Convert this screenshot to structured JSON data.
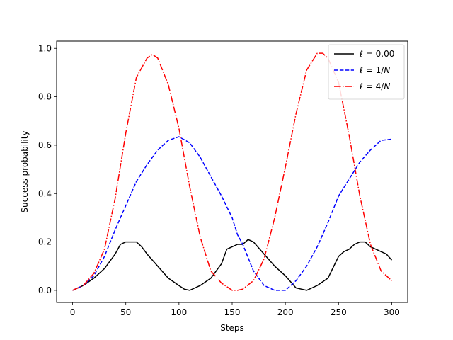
{
  "chart_data": {
    "type": "line",
    "title": "",
    "xlabel": "Steps",
    "ylabel": "Success probability",
    "xlim": [
      -15,
      315
    ],
    "ylim": [
      -0.05,
      1.03
    ],
    "xticks": [
      0,
      50,
      100,
      150,
      200,
      250,
      300
    ],
    "yticks": [
      0.0,
      0.2,
      0.4,
      0.6,
      0.8,
      1.0
    ],
    "xtick_labels": [
      "0",
      "50",
      "100",
      "150",
      "200",
      "250",
      "300"
    ],
    "ytick_labels": [
      "0.0",
      "0.2",
      "0.4",
      "0.6",
      "0.8",
      "1.0"
    ],
    "grid": false,
    "legend_position": "top-right",
    "series": [
      {
        "name": "ℓ = 0.00",
        "label_parts": [
          "ℓ = 0.00"
        ],
        "color": "#000000",
        "dash": "solid",
        "x": [
          0,
          10,
          20,
          30,
          40,
          45,
          50,
          55,
          60,
          65,
          70,
          80,
          90,
          100,
          105,
          110,
          115,
          120,
          130,
          140,
          145,
          150,
          155,
          160,
          165,
          170,
          180,
          190,
          200,
          210,
          215,
          220,
          225,
          230,
          240,
          250,
          255,
          260,
          265,
          270,
          275,
          280,
          285,
          290,
          295,
          300
        ],
        "y": [
          0.0,
          0.02,
          0.05,
          0.09,
          0.15,
          0.19,
          0.2,
          0.2,
          0.2,
          0.18,
          0.15,
          0.1,
          0.05,
          0.02,
          0.005,
          0.0,
          0.01,
          0.02,
          0.05,
          0.11,
          0.17,
          0.18,
          0.19,
          0.19,
          0.21,
          0.2,
          0.15,
          0.1,
          0.06,
          0.01,
          0.005,
          0.0,
          0.01,
          0.02,
          0.05,
          0.14,
          0.16,
          0.17,
          0.19,
          0.2,
          0.2,
          0.18,
          0.17,
          0.16,
          0.15,
          0.125
        ]
      },
      {
        "name": "ℓ = 1/N",
        "label_parts": [
          "ℓ = 1/",
          "N"
        ],
        "color": "#0000ff",
        "dash": "dashed",
        "x": [
          0,
          10,
          20,
          30,
          40,
          50,
          60,
          70,
          80,
          90,
          100,
          110,
          120,
          130,
          140,
          150,
          155,
          160,
          170,
          180,
          190,
          200,
          210,
          220,
          230,
          240,
          250,
          260,
          270,
          280,
          290,
          300
        ],
        "y": [
          0.0,
          0.02,
          0.06,
          0.14,
          0.25,
          0.35,
          0.45,
          0.52,
          0.58,
          0.62,
          0.635,
          0.61,
          0.55,
          0.47,
          0.39,
          0.3,
          0.23,
          0.19,
          0.08,
          0.02,
          0.0,
          0.0,
          0.04,
          0.1,
          0.18,
          0.28,
          0.39,
          0.46,
          0.53,
          0.58,
          0.62,
          0.625
        ]
      },
      {
        "name": "ℓ = 4/N",
        "label_parts": [
          "ℓ = 4/",
          "N"
        ],
        "color": "#ff0000",
        "dash": "dashdot",
        "x": [
          0,
          10,
          20,
          30,
          40,
          50,
          60,
          70,
          75,
          80,
          90,
          100,
          110,
          120,
          130,
          140,
          150,
          155,
          160,
          170,
          180,
          190,
          200,
          210,
          220,
          230,
          235,
          240,
          250,
          260,
          270,
          280,
          290,
          300
        ],
        "y": [
          0.0,
          0.02,
          0.07,
          0.17,
          0.38,
          0.65,
          0.88,
          0.96,
          0.975,
          0.96,
          0.85,
          0.67,
          0.43,
          0.22,
          0.08,
          0.03,
          0.0,
          0.0,
          0.005,
          0.04,
          0.13,
          0.3,
          0.51,
          0.73,
          0.91,
          0.98,
          0.98,
          0.96,
          0.86,
          0.64,
          0.39,
          0.19,
          0.08,
          0.04
        ]
      }
    ]
  }
}
